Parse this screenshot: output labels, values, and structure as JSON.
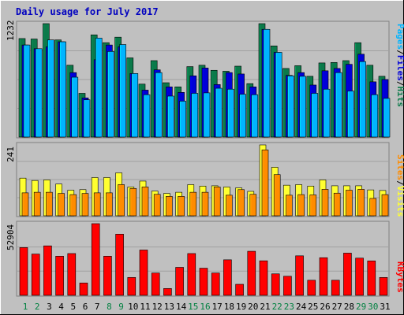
{
  "title": "Daily usage for July 2017",
  "colors": {
    "bg": "#c0c0c0",
    "title": "#0000c0",
    "hits": "#0b7a4a",
    "files": "#0000d8",
    "pages": "#00b4ff",
    "visits": "#ffff30",
    "sites": "#ff8c00",
    "kbytes": "#ff0000",
    "weekend_label": "#008040",
    "weekday_label": "#000000"
  },
  "legend": {
    "top": [
      {
        "text": "Pages",
        "color": "#00b4ff"
      },
      {
        "text": "/",
        "color": "#000000"
      },
      {
        "text": "Files",
        "color": "#0000d8"
      },
      {
        "text": "/",
        "color": "#000000"
      },
      {
        "text": "Hits",
        "color": "#0b7a4a"
      }
    ],
    "middle": [
      {
        "text": "Sites",
        "color": "#ff8c00"
      },
      {
        "text": "/",
        "color": "#000000"
      },
      {
        "text": "Visits",
        "color": "#ffff30"
      }
    ],
    "bottom": [
      {
        "text": "KBytes",
        "color": "#ff0000"
      }
    ]
  },
  "chart_data": [
    {
      "type": "bar",
      "panel": "hits-files-pages",
      "max_label": "1232",
      "ylim": [
        0,
        1232
      ],
      "categories": [
        "1",
        "2",
        "3",
        "4",
        "5",
        "6",
        "7",
        "8",
        "9",
        "10",
        "11",
        "12",
        "13",
        "14",
        "15",
        "16",
        "17",
        "18",
        "19",
        "20",
        "21",
        "22",
        "23",
        "24",
        "25",
        "26",
        "27",
        "28",
        "29",
        "30",
        "31"
      ],
      "series": [
        {
          "name": "Hits",
          "values": [
            1070,
            1065,
            1232,
            1055,
            780,
            475,
            1110,
            1025,
            1085,
            860,
            575,
            830,
            590,
            545,
            765,
            780,
            725,
            715,
            770,
            580,
            1232,
            990,
            745,
            775,
            660,
            805,
            810,
            830,
            1025,
            780,
            660
          ]
        },
        {
          "name": "Files",
          "values": [
            1000,
            960,
            980,
            1035,
            700,
            425,
            840,
            1000,
            980,
            690,
            510,
            730,
            545,
            485,
            665,
            750,
            570,
            700,
            685,
            545,
            1170,
            920,
            670,
            700,
            565,
            720,
            745,
            790,
            900,
            600,
            625
          ]
        },
        {
          "name": "Pages",
          "values": [
            1000,
            960,
            1055,
            1035,
            650,
            405,
            1075,
            930,
            1005,
            690,
            460,
            700,
            445,
            390,
            475,
            480,
            530,
            520,
            465,
            460,
            1170,
            920,
            665,
            660,
            475,
            520,
            700,
            500,
            820,
            460,
            420
          ]
        }
      ]
    },
    {
      "type": "bar",
      "panel": "visits-sites",
      "max_label": "241",
      "ylim": [
        0,
        241
      ],
      "categories": [
        "1",
        "2",
        "3",
        "4",
        "5",
        "6",
        "7",
        "8",
        "9",
        "10",
        "11",
        "12",
        "13",
        "14",
        "15",
        "16",
        "17",
        "18",
        "19",
        "20",
        "21",
        "22",
        "23",
        "24",
        "25",
        "26",
        "27",
        "28",
        "29",
        "30",
        "31"
      ],
      "series": [
        {
          "name": "Visits",
          "values": [
            128,
            120,
            122,
            108,
            87,
            89,
            130,
            130,
            146,
            98,
            118,
            84,
            76,
            80,
            106,
            101,
            102,
            98,
            95,
            83,
            241,
            165,
            104,
            106,
            101,
            122,
            102,
            102,
            102,
            88,
            86
          ]
        },
        {
          "name": "Sites",
          "values": [
            78,
            80,
            80,
            76,
            72,
            76,
            78,
            78,
            106,
            93,
            98,
            73,
            66,
            66,
            80,
            80,
            98,
            70,
            89,
            73,
            224,
            140,
            70,
            72,
            71,
            90,
            77,
            87,
            90,
            59,
            72
          ]
        }
      ]
    },
    {
      "type": "bar",
      "panel": "kbytes",
      "max_label": "52904",
      "ylim": [
        0,
        52904
      ],
      "categories": [
        "1",
        "2",
        "3",
        "4",
        "5",
        "6",
        "7",
        "8",
        "9",
        "10",
        "11",
        "12",
        "13",
        "14",
        "15",
        "16",
        "17",
        "18",
        "19",
        "20",
        "21",
        "22",
        "23",
        "24",
        "25",
        "26",
        "27",
        "28",
        "29",
        "30",
        "31"
      ],
      "series": [
        {
          "name": "KBytes",
          "values": [
            35260,
            30470,
            36510,
            28880,
            30840,
            9100,
            52904,
            28880,
            45160,
            13180,
            33450,
            16490,
            5020,
            20640,
            30840,
            20030,
            16490,
            26230,
            8140,
            32520,
            25480,
            15840,
            14080,
            29160,
            11130,
            27770,
            11130,
            31160,
            27460,
            25420,
            13180
          ]
        }
      ]
    }
  ]
}
